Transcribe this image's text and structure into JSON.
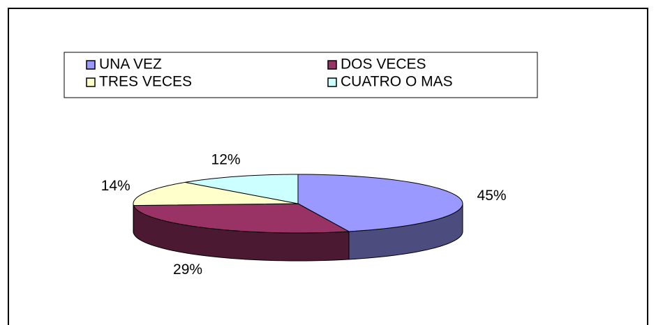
{
  "chart_data": {
    "type": "pie3d",
    "categories": [
      "UNA VEZ",
      "DOS VECES",
      "TRES VECES",
      "CUATRO O MAS"
    ],
    "values": [
      45,
      29,
      14,
      12
    ],
    "value_labels": [
      "45%",
      "29%",
      "14%",
      "12%"
    ],
    "colors": [
      "#9999ff",
      "#993366",
      "#ffffcc",
      "#ccffff"
    ],
    "legend": "top"
  }
}
